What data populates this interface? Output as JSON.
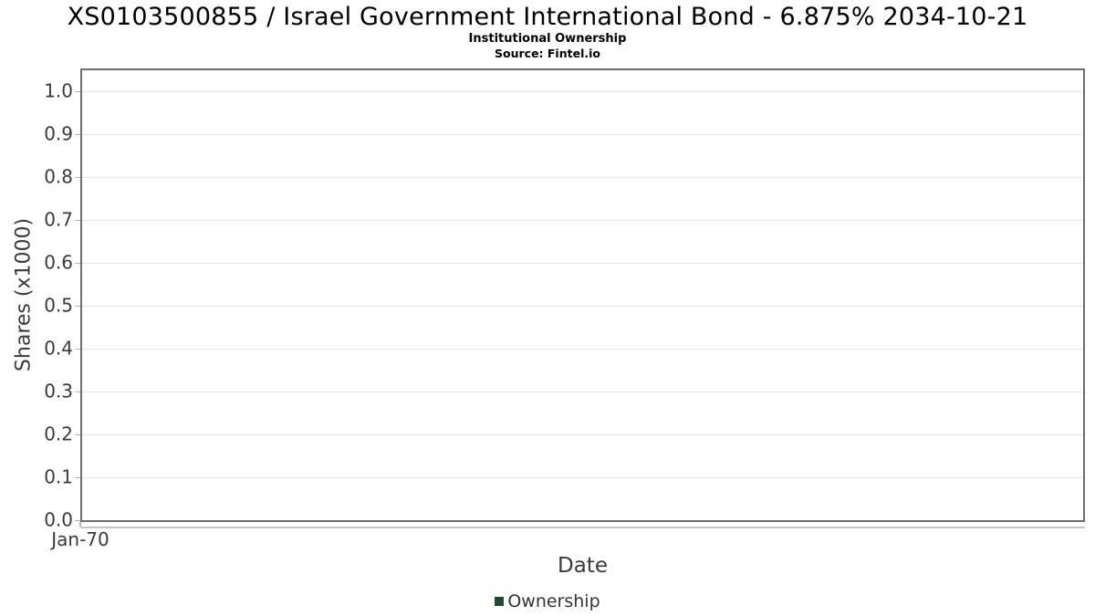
{
  "chart_data": {
    "type": "line",
    "title": "XS0103500855 / Israel Government International Bond - 6.875% 2034-10-21",
    "subtitle": "Institutional Ownership",
    "source": "Source: Fintel.io",
    "xlabel": "Date",
    "ylabel": "Shares (x1000)",
    "x_ticks": [
      "Jan-70"
    ],
    "y_ticks": [
      0.0,
      0.1,
      0.2,
      0.3,
      0.4,
      0.5,
      0.6,
      0.7,
      0.8,
      0.9,
      1.0
    ],
    "ylim": [
      0.0,
      1.05
    ],
    "grid": true,
    "legend_position": "bottom",
    "series": [
      {
        "name": "Ownership",
        "color": "#1e4d2b",
        "x": [],
        "values": []
      }
    ],
    "colors": {
      "plot_border": "#6e6e6e",
      "gridline": "#e4e4e4",
      "tick_mark": "#b4b4b4",
      "axis_text": "#3a3a3a",
      "title_text": "#000000",
      "legend_marker": "#1e4d2b"
    }
  }
}
